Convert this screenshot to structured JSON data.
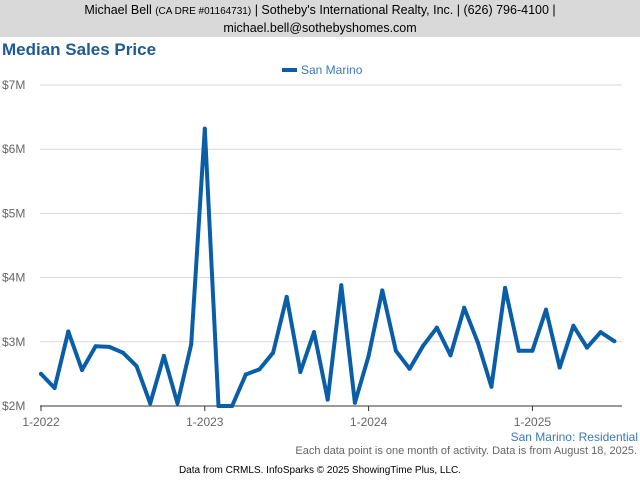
{
  "header": {
    "agent_name": "Michael Bell",
    "license": "(CA DRE #01164731)",
    "details": "| Sotheby's International Realty, Inc. | (626) 796-4100 |",
    "email": "michael.bell@sothebyshomes.com"
  },
  "page_title": "Median Sales Price",
  "chart_data": {
    "type": "line",
    "title": "Median Sales Price",
    "xlabel": "",
    "ylabel": "",
    "ylim": [
      2000000,
      7000000
    ],
    "y_ticks": [
      2000000,
      3000000,
      4000000,
      5000000,
      6000000,
      7000000
    ],
    "y_tick_labels": [
      "$2M",
      "$3M",
      "$4M",
      "$5M",
      "$6M",
      "$7M"
    ],
    "x_tick_labels": [
      "1-2022",
      "1-2023",
      "1-2024",
      "1-2025"
    ],
    "x_tick_indices": [
      0,
      12,
      24,
      36
    ],
    "grid": true,
    "legend_position": "top-center",
    "series": [
      {
        "name": "San Marino",
        "color": "#0a5ea8",
        "values": [
          2500000,
          2280000,
          3160000,
          2560000,
          2930000,
          2920000,
          2830000,
          2620000,
          2040000,
          2780000,
          2040000,
          2960000,
          6320000,
          2000000,
          2000000,
          2490000,
          2570000,
          2830000,
          3700000,
          2530000,
          3150000,
          2100000,
          3880000,
          2050000,
          2780000,
          3800000,
          2860000,
          2580000,
          2940000,
          3220000,
          2790000,
          3530000,
          2990000,
          2300000,
          3840000,
          2860000,
          2860000,
          3500000,
          2600000,
          3250000,
          2910000,
          3150000,
          3010000
        ]
      }
    ]
  },
  "region_label": "San Marino: Residential",
  "footnote": "Each data point is one month of activity. Data is from August 18, 2025.",
  "credits": "Data from CRMLS. InfoSparks © 2025 ShowingTime Plus, LLC."
}
